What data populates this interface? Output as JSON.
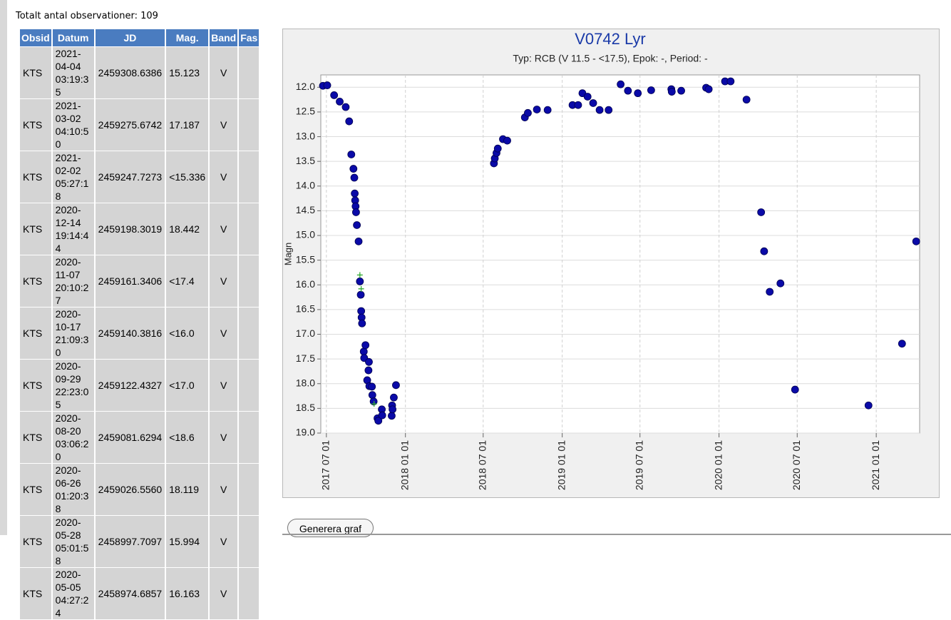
{
  "header": {
    "total": "Totalt antal observationer: 109"
  },
  "table": {
    "columns": [
      "Obsid",
      "Datum",
      "JD",
      "Mag.",
      "Band",
      "Fas"
    ],
    "rows": [
      [
        "KTS",
        "2021-04-04 03:19:35",
        "2459308.6386",
        "15.123",
        "V"
      ],
      [
        "KTS",
        "2021-03-02 04:10:50",
        "2459275.6742",
        "17.187",
        "V"
      ],
      [
        "KTS",
        "2021-02-02 05:27:18",
        "2459247.7273",
        "<15.336",
        "V"
      ],
      [
        "KTS",
        "2020-12-14 19:14:44",
        "2459198.3019",
        "18.442",
        "V"
      ],
      [
        "KTS",
        "2020-11-07 20:10:27",
        "2459161.3406",
        "<17.4",
        "V"
      ],
      [
        "KTS",
        "2020-10-17 21:09:30",
        "2459140.3816",
        "<16.0",
        "V"
      ],
      [
        "KTS",
        "2020-09-29 22:23:05",
        "2459122.4327",
        "<17.0",
        "V"
      ],
      [
        "KTS",
        "2020-08-20 03:06:20",
        "2459081.6294",
        "<18.6",
        "V"
      ],
      [
        "KTS",
        "2020-06-26 01:20:38",
        "2459026.5560",
        "18.119",
        "V"
      ],
      [
        "KTS",
        "2020-05-28 05:01:58",
        "2458997.7097",
        "15.994",
        "V"
      ],
      [
        "KTS",
        "2020-05-05 04:27:24",
        "2458974.6857",
        "16.163",
        "V"
      ]
    ]
  },
  "chart_data": {
    "type": "scatter",
    "title": "V0742 Lyr",
    "subtitle": "Typ: RCB (V 11.5 - <17.5), Epok: -, Period: -",
    "y_label": "Magn",
    "y_inverted": true,
    "xlim": [
      "2017-06-18",
      "2021-04-12"
    ],
    "xticks": [
      "2017 07 01",
      "2018 01 01",
      "2018 07 01",
      "2019 01 01",
      "2019 07 01",
      "2020 01 01",
      "2020 07 01",
      "2021 01 01"
    ],
    "ylim": [
      11.75,
      19.0
    ],
    "yticks": [
      {
        "value": 12,
        "label": "12.0"
      },
      {
        "value": 12.5,
        "label": "12.5"
      },
      {
        "value": 13,
        "label": "13.0"
      },
      {
        "value": 13.5,
        "label": "13.5"
      },
      {
        "value": 14,
        "label": "14.0"
      },
      {
        "value": 14.5,
        "label": "14.5"
      },
      {
        "value": 15,
        "label": "15.0"
      },
      {
        "value": 15.5,
        "label": "15.5"
      },
      {
        "value": 16,
        "label": "16.0"
      },
      {
        "value": 16.5,
        "label": "16.5"
      },
      {
        "value": 17,
        "label": "17.0"
      },
      {
        "value": 17.5,
        "label": "17.5"
      },
      {
        "value": 18,
        "label": "18.0"
      },
      {
        "value": 18.5,
        "label": "18.5"
      },
      {
        "value": 19,
        "label": "19.0"
      }
    ],
    "grid": true,
    "series": [
      {
        "color": "#0a0aa8",
        "marker": "circle",
        "x": [
          "2017-06-23",
          "2017-07-03",
          "2017-07-19",
          "2017-08-01",
          "2017-08-15",
          "2017-08-23",
          "2017-08-28",
          "2017-09-02",
          "2017-09-04",
          "2017-09-05",
          "2017-09-06",
          "2017-09-07",
          "2017-09-08",
          "2017-09-10",
          "2017-09-14",
          "2017-09-17",
          "2017-09-19",
          "2017-09-20",
          "2017-09-21",
          "2017-09-22",
          "2017-09-26",
          "2017-09-27",
          "2017-09-30",
          "2017-10-04",
          "2017-10-07",
          "2017-10-08",
          "2017-10-09",
          "2017-10-15",
          "2017-10-16",
          "2017-10-19",
          "2017-10-28",
          "2017-10-30",
          "2017-11-07",
          "2017-11-08",
          "2017-11-30",
          "2017-12-01",
          "2017-12-02",
          "2017-12-05",
          "2017-12-10",
          "2018-07-26",
          "2018-07-28",
          "2018-08-01",
          "2018-08-04",
          "2018-08-16",
          "2018-08-26",
          "2018-10-06",
          "2018-10-13",
          "2018-11-03",
          "2018-11-28",
          "2019-01-25",
          "2019-02-07",
          "2019-02-17",
          "2019-03-01",
          "2019-03-14",
          "2019-03-29",
          "2019-04-19",
          "2019-05-17",
          "2019-06-03",
          "2019-06-26",
          "2019-07-27",
          "2019-09-12",
          "2019-09-13",
          "2019-10-05",
          "2019-12-02",
          "2019-12-08",
          "2020-01-15",
          "2020-01-28",
          "2020-03-05",
          "2020-04-08",
          "2020-04-15",
          "2020-04-28",
          "2020-05-23",
          "2020-06-26",
          "2020-12-14",
          "2021-03-02",
          "2021-04-04"
        ],
        "values": [
          11.97,
          11.96,
          12.16,
          12.29,
          12.4,
          12.69,
          13.36,
          13.65,
          13.83,
          14.15,
          14.29,
          14.41,
          14.53,
          14.79,
          15.12,
          15.93,
          16.2,
          16.53,
          16.66,
          16.78,
          17.35,
          17.48,
          17.22,
          17.93,
          17.73,
          17.56,
          18.05,
          18.06,
          18.23,
          18.36,
          18.7,
          18.75,
          18.52,
          18.64,
          18.65,
          18.44,
          18.52,
          18.28,
          18.03,
          13.54,
          13.44,
          13.33,
          13.24,
          13.05,
          13.08,
          12.61,
          12.52,
          12.45,
          12.46,
          12.36,
          12.36,
          12.12,
          12.19,
          12.32,
          12.46,
          12.46,
          11.94,
          12.07,
          12.12,
          12.06,
          12.04,
          12.09,
          12.07,
          12.01,
          12.04,
          11.88,
          11.88,
          12.25,
          14.53,
          15.32,
          16.14,
          15.97,
          18.12,
          18.44,
          17.19,
          15.12
        ]
      },
      {
        "color": "#33aa33",
        "marker": "plus",
        "x": [
          "2017-09-17",
          "2017-09-20",
          "2017-10-20"
        ],
        "values": [
          15.8,
          16.08,
          18.41
        ]
      }
    ]
  },
  "button": "Generera graf"
}
